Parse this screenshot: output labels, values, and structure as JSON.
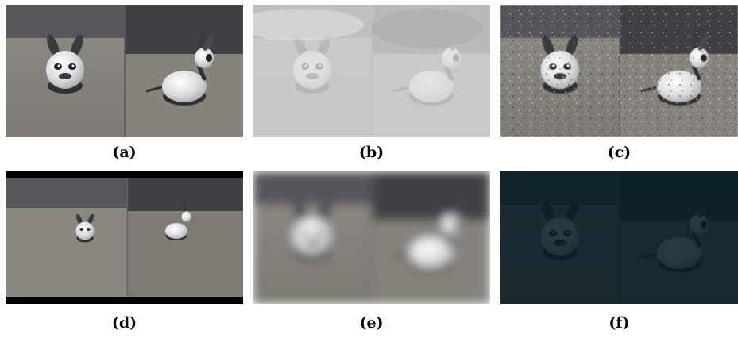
{
  "figure": {
    "panels": [
      {
        "id": "a",
        "label": "(a)",
        "effect": "original"
      },
      {
        "id": "b",
        "label": "(b)",
        "effect": "fog"
      },
      {
        "id": "c",
        "label": "(c)",
        "effect": "noise-speckle"
      },
      {
        "id": "d",
        "label": "(d)",
        "effect": "zoom-out-letterbox"
      },
      {
        "id": "e",
        "label": "(e)",
        "effect": "blur"
      },
      {
        "id": "f",
        "label": "(f)",
        "effect": "low-light"
      }
    ],
    "colors": {
      "wall": "#4e5054",
      "floor": "#8e8b85",
      "robot_body": "#e8e8ea",
      "robot_base": "#2f3033",
      "fog": "#dcdcdc",
      "dark_tint": "#071a22"
    }
  }
}
